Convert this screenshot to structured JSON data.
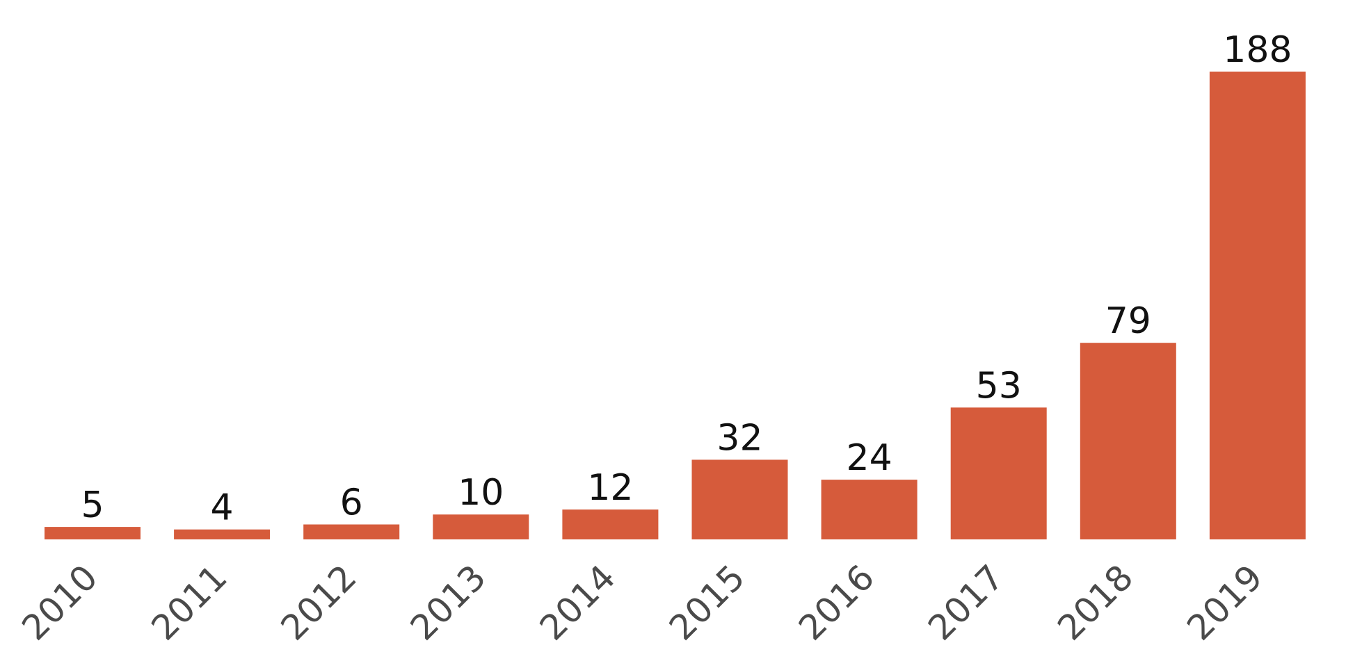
{
  "chart_data": {
    "type": "bar",
    "categories": [
      "2010",
      "2011",
      "2012",
      "2013",
      "2014",
      "2015",
      "2016",
      "2017",
      "2018",
      "2019"
    ],
    "values": [
      5,
      4,
      6,
      10,
      12,
      32,
      24,
      53,
      79,
      188
    ],
    "data_labels": [
      "5",
      "4",
      "6",
      "10",
      "12",
      "32",
      "24",
      "53",
      "79",
      "188"
    ],
    "title": "",
    "xlabel": "",
    "ylabel": "",
    "ylim": [
      0,
      188
    ],
    "grid": false,
    "legend": "none",
    "bar_color": "#d65b3b",
    "label_color": "#111111",
    "tick_color": "#4a4a4a"
  }
}
